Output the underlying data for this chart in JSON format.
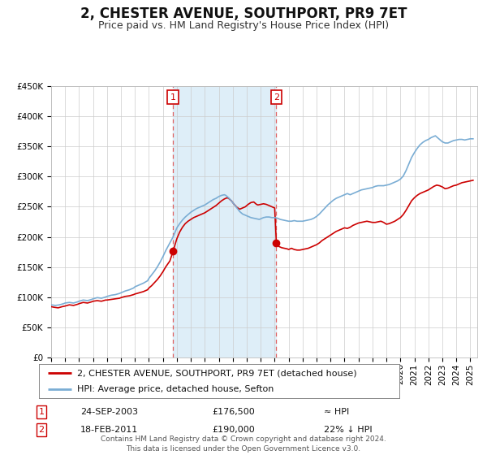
{
  "title": "2, CHESTER AVENUE, SOUTHPORT, PR9 7ET",
  "subtitle": "Price paid vs. HM Land Registry's House Price Index (HPI)",
  "ylim": [
    0,
    450000
  ],
  "yticks": [
    0,
    50000,
    100000,
    150000,
    200000,
    250000,
    300000,
    350000,
    400000,
    450000
  ],
  "ytick_labels": [
    "£0",
    "£50K",
    "£100K",
    "£150K",
    "£200K",
    "£250K",
    "£300K",
    "£350K",
    "£400K",
    "£450K"
  ],
  "xlim_start": 1995.0,
  "xlim_end": 2025.5,
  "xtick_years": [
    1995,
    1996,
    1997,
    1998,
    1999,
    2000,
    2001,
    2002,
    2003,
    2004,
    2005,
    2006,
    2007,
    2008,
    2009,
    2010,
    2011,
    2012,
    2013,
    2014,
    2015,
    2016,
    2017,
    2018,
    2019,
    2020,
    2021,
    2022,
    2023,
    2024,
    2025
  ],
  "red_line_color": "#cc0000",
  "blue_line_color": "#7aadd4",
  "shaded_region_color": "#deeef8",
  "dashed_line_color": "#e06060",
  "background_color": "#ffffff",
  "grid_color": "#cccccc",
  "sale1_x": 2003.73,
  "sale1_y": 176500,
  "sale1_label": "1",
  "sale2_x": 2011.12,
  "sale2_y": 190000,
  "sale2_label": "2",
  "legend_line1": "2, CHESTER AVENUE, SOUTHPORT, PR9 7ET (detached house)",
  "legend_line2": "HPI: Average price, detached house, Sefton",
  "table_row1_num": "1",
  "table_row1_date": "24-SEP-2003",
  "table_row1_price": "£176,500",
  "table_row1_hpi": "≈ HPI",
  "table_row2_num": "2",
  "table_row2_date": "18-FEB-2011",
  "table_row2_price": "£190,000",
  "table_row2_hpi": "22% ↓ HPI",
  "footer": "Contains HM Land Registry data © Crown copyright and database right 2024.\nThis data is licensed under the Open Government Licence v3.0.",
  "title_fontsize": 12,
  "subtitle_fontsize": 9,
  "tick_fontsize": 7.5,
  "footer_fontsize": 6.5
}
